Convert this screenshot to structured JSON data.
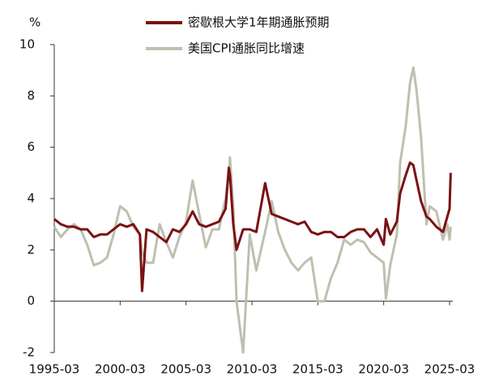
{
  "chart_data": {
    "type": "line",
    "y_label": "%",
    "x": [
      "1995-03",
      "1995-09",
      "1996-03",
      "1996-09",
      "1997-03",
      "1997-09",
      "1998-03",
      "1998-09",
      "1999-03",
      "1999-09",
      "2000-03",
      "2000-09",
      "2001-03",
      "2001-09",
      "2001-11",
      "2002-03",
      "2002-09",
      "2003-03",
      "2003-09",
      "2004-03",
      "2004-09",
      "2005-03",
      "2005-09",
      "2006-03",
      "2006-09",
      "2007-03",
      "2007-09",
      "2008-03",
      "2008-06",
      "2008-07",
      "2008-10",
      "2009-01",
      "2009-07",
      "2010-01",
      "2010-07",
      "2011-03",
      "2011-09",
      "2012-03",
      "2012-09",
      "2013-03",
      "2013-09",
      "2014-03",
      "2014-09",
      "2015-03",
      "2015-09",
      "2016-03",
      "2016-09",
      "2017-03",
      "2017-09",
      "2018-03",
      "2018-09",
      "2019-03",
      "2019-09",
      "2020-03",
      "2020-05",
      "2020-09",
      "2021-03",
      "2021-06",
      "2021-11",
      "2022-03",
      "2022-06",
      "2022-09",
      "2023-01",
      "2023-06",
      "2023-09",
      "2024-03",
      "2024-09",
      "2025-01",
      "2025-03",
      "2025-04"
    ],
    "series": [
      {
        "name": "密歇根大学1年期通胀预期",
        "color": "#7b1113",
        "values": [
          3.2,
          3.0,
          2.9,
          2.9,
          2.8,
          2.8,
          2.5,
          2.6,
          2.6,
          2.8,
          3.0,
          2.9,
          3.0,
          2.6,
          0.4,
          2.8,
          2.7,
          2.5,
          2.3,
          2.8,
          2.7,
          3.0,
          3.5,
          3.0,
          2.9,
          3.0,
          3.1,
          3.6,
          5.2,
          4.9,
          3.0,
          2.0,
          2.8,
          2.8,
          2.7,
          4.6,
          3.4,
          3.3,
          3.2,
          3.1,
          3.0,
          3.1,
          2.7,
          2.6,
          2.7,
          2.7,
          2.5,
          2.5,
          2.7,
          2.8,
          2.8,
          2.5,
          2.8,
          2.2,
          3.2,
          2.6,
          3.1,
          4.2,
          4.9,
          5.4,
          5.3,
          4.7,
          3.9,
          3.3,
          3.2,
          2.9,
          2.7,
          3.3,
          3.6,
          5.0
        ]
      },
      {
        "name": "美国CPI通胀同比增速",
        "color": "#bfbfaf",
        "values": [
          2.9,
          2.5,
          2.8,
          3.0,
          2.8,
          2.2,
          1.4,
          1.5,
          1.7,
          2.6,
          3.7,
          3.5,
          2.9,
          2.6,
          1.9,
          1.5,
          1.5,
          3.0,
          2.3,
          1.7,
          2.5,
          3.1,
          4.7,
          3.4,
          2.1,
          2.8,
          2.8,
          4.0,
          5.0,
          5.6,
          3.7,
          0.0,
          -2.0,
          2.6,
          1.2,
          2.7,
          3.9,
          2.7,
          2.0,
          1.5,
          1.2,
          1.5,
          1.7,
          0.0,
          0.0,
          0.9,
          1.5,
          2.4,
          2.2,
          2.4,
          2.3,
          1.9,
          1.7,
          1.5,
          0.1,
          1.4,
          2.6,
          5.4,
          6.8,
          8.5,
          9.1,
          8.2,
          6.4,
          3.0,
          3.7,
          3.5,
          2.4,
          3.0,
          2.4,
          2.9
        ]
      }
    ],
    "xlim": [
      "1995-03",
      "2025-03"
    ],
    "xticks": [
      "1995-03",
      "2000-03",
      "2005-03",
      "2010-03",
      "2015-03",
      "2020-03",
      "2025-03"
    ],
    "ylim": [
      -2,
      10
    ],
    "yticks": [
      -2,
      0,
      2,
      4,
      6,
      8,
      10
    ]
  }
}
